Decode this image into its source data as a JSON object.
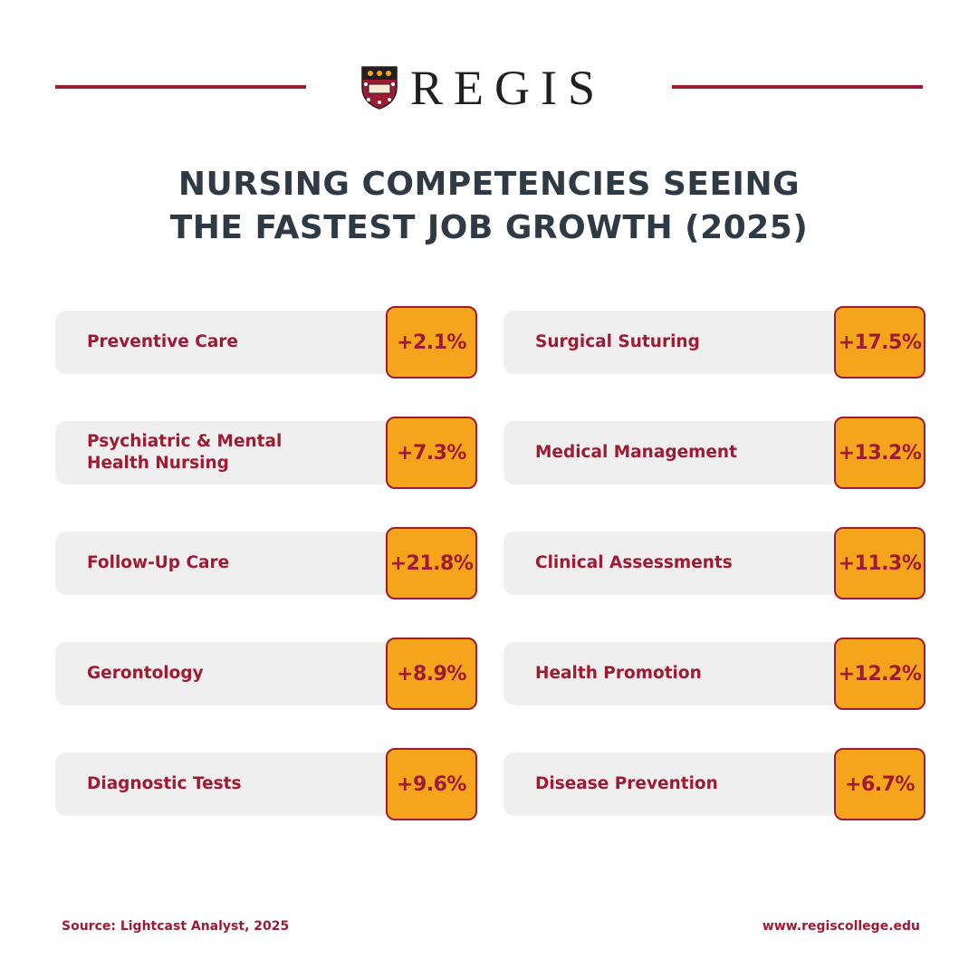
{
  "brand": {
    "name": "REGIS",
    "accent": "#9e1b32",
    "badge_color": "#f4a51c",
    "logo_icon": "shield-crest-icon"
  },
  "title": {
    "line1": "NURSING COMPETENCIES SEEING",
    "line2": "THE FASTEST JOB GROWTH (2025)"
  },
  "items": [
    {
      "label": "Preventive Care",
      "value": "+2.1%"
    },
    {
      "label": "Surgical Suturing",
      "value": "+17.5%"
    },
    {
      "label": "Psychiatric & Mental Health Nursing",
      "value": "+7.3%"
    },
    {
      "label": "Medical Management",
      "value": "+13.2%"
    },
    {
      "label": "Follow-Up Care",
      "value": "+21.8%"
    },
    {
      "label": "Clinical Assessments",
      "value": "+11.3%"
    },
    {
      "label": "Gerontology",
      "value": "+8.9%"
    },
    {
      "label": "Health Promotion",
      "value": "+12.2%"
    },
    {
      "label": "Diagnostic Tests",
      "value": "+9.6%"
    },
    {
      "label": "Disease Prevention",
      "value": "+6.7%"
    }
  ],
  "footer": {
    "source": "Source: Lightcast Analyst, 2025",
    "url": "www.regiscollege.edu"
  }
}
